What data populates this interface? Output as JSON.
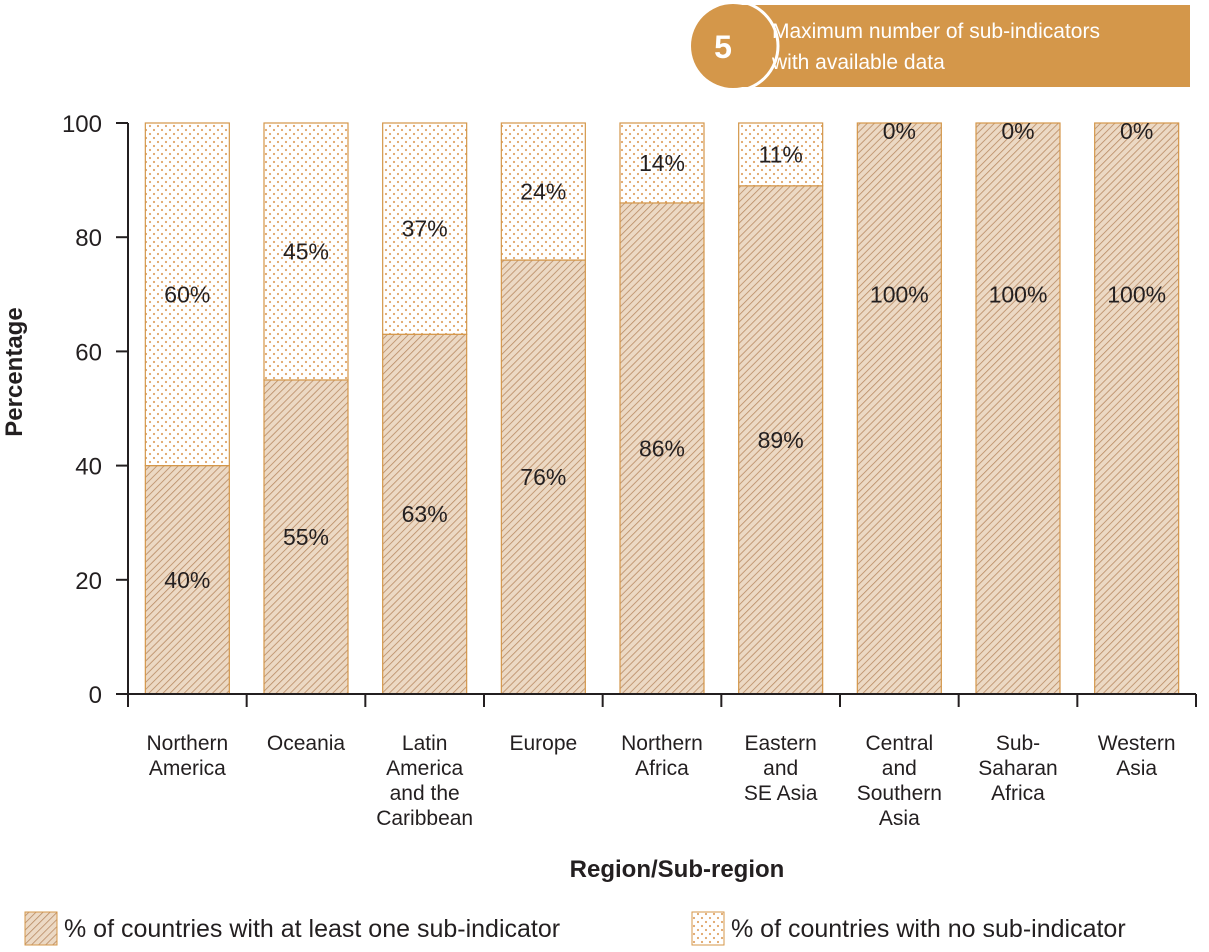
{
  "banner": {
    "number": "5",
    "line1": "Maximum number of sub-indicators",
    "line2": "with available data"
  },
  "colors": {
    "accent": "#d4974a",
    "hatch_fill": "#ecd9c4",
    "hatch_line": "#b88a63",
    "dot_fill": "#ffffff",
    "dot": "#e0a568",
    "axis": "#231f20"
  },
  "chart_data": {
    "type": "bar",
    "stacked": true,
    "categories": [
      [
        "Northern",
        "America"
      ],
      [
        "Oceania"
      ],
      [
        "Latin",
        "America",
        "and the",
        "Caribbean"
      ],
      [
        "Europe"
      ],
      [
        "Northern",
        "Africa"
      ],
      [
        "Eastern",
        "and",
        "SE Asia"
      ],
      [
        "Central",
        "and",
        "Southern",
        "Asia"
      ],
      [
        "Sub-",
        "Saharan",
        "Africa"
      ],
      [
        "Western",
        "Asia"
      ]
    ],
    "series": [
      {
        "name": "% of countries with at least one sub-indicator",
        "values": [
          40,
          55,
          63,
          76,
          86,
          89,
          100,
          100,
          100
        ],
        "labels": [
          "40%",
          "55%",
          "63%",
          "76%",
          "86%",
          "89%",
          "100%",
          "100%",
          "100%"
        ],
        "pattern": "hatch"
      },
      {
        "name": "% of countries with no sub-indicator",
        "values": [
          60,
          45,
          37,
          24,
          14,
          11,
          0,
          0,
          0
        ],
        "labels": [
          "60%",
          "45%",
          "37%",
          "24%",
          "14%",
          "11%",
          "0%",
          "0%",
          "0%"
        ],
        "pattern": "dots"
      }
    ],
    "xlabel": "Region/Sub-region",
    "ylabel": "Percentage",
    "ylim": [
      0,
      100
    ],
    "yticks": [
      0,
      20,
      40,
      60,
      80,
      100
    ],
    "legend_position": "bottom",
    "grid": false
  }
}
